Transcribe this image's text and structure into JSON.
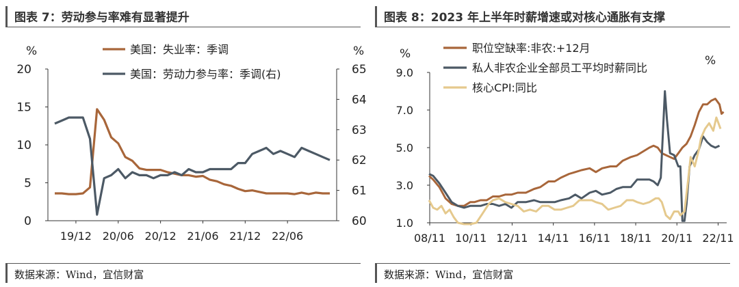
{
  "left": {
    "title": "图表 7：劳动参与率难有显著提升",
    "source": "数据来源：Wind，宜信财富",
    "chart_data": {
      "type": "line",
      "left_unit": "%",
      "right_unit": "%",
      "ylim_left": [
        0,
        20
      ],
      "ylim_right": [
        60,
        65
      ],
      "yticks_left": [
        "0",
        "5",
        "10",
        "15",
        "20"
      ],
      "yticks_right": [
        "60",
        "61",
        "62",
        "63",
        "64",
        "65"
      ],
      "xticks": [
        "19/12",
        "20/06",
        "20/12",
        "21/06",
        "21/12",
        "22/06"
      ],
      "grid": false,
      "legend_position": "top-center",
      "x_months": [
        "2019-09",
        "2019-10",
        "2019-11",
        "2019-12",
        "2020-01",
        "2020-02",
        "2020-03",
        "2020-04",
        "2020-05",
        "2020-06",
        "2020-07",
        "2020-08",
        "2020-09",
        "2020-10",
        "2020-11",
        "2020-12",
        "2021-01",
        "2021-02",
        "2021-03",
        "2021-04",
        "2021-05",
        "2021-06",
        "2021-07",
        "2021-08",
        "2021-09",
        "2021-10",
        "2021-11",
        "2021-12",
        "2022-01",
        "2022-02",
        "2022-03",
        "2022-04",
        "2022-05",
        "2022-06",
        "2022-07",
        "2022-08",
        "2022-09",
        "2022-10",
        "2022-11",
        "2022-12"
      ],
      "series": [
        {
          "name": "美国：失业率：季调",
          "axis": "left",
          "color": "#a8663a",
          "values": [
            3.6,
            3.6,
            3.5,
            3.5,
            3.6,
            4.4,
            14.7,
            13.3,
            11.0,
            10.2,
            8.4,
            7.9,
            6.9,
            6.7,
            6.7,
            6.7,
            6.4,
            6.2,
            6.0,
            6.0,
            5.8,
            5.9,
            5.4,
            5.2,
            4.8,
            4.6,
            4.2,
            3.9,
            4.0,
            3.8,
            3.6,
            3.6,
            3.6,
            3.6,
            3.5,
            3.7,
            3.5,
            3.7,
            3.6,
            3.6
          ]
        },
        {
          "name": "美国：劳动力参与率：季调(右)",
          "axis": "right",
          "color": "#4c5965",
          "values": [
            63.2,
            63.3,
            63.4,
            63.4,
            63.4,
            62.7,
            60.2,
            61.4,
            61.5,
            61.7,
            61.4,
            61.6,
            61.5,
            61.5,
            61.4,
            61.5,
            61.5,
            61.6,
            61.5,
            61.7,
            61.6,
            61.6,
            61.7,
            61.7,
            61.7,
            61.7,
            61.9,
            61.9,
            62.2,
            62.3,
            62.4,
            62.2,
            62.3,
            62.2,
            62.1,
            62.4,
            62.3,
            62.2,
            62.1,
            62.0
          ]
        }
      ]
    }
  },
  "right": {
    "title": "图表 8：2023 年上半年时薪增速或对核心通胀有支撑",
    "source": "数据来源：Wind，宜信财富",
    "chart_data": {
      "type": "line",
      "left_unit": "%",
      "right_unit": "%",
      "ylim": [
        1.0,
        9.0
      ],
      "yticks": [
        "1.0",
        "3.0",
        "5.0",
        "7.0",
        "9.0"
      ],
      "xticks": [
        "08/11",
        "10/11",
        "12/11",
        "14/11",
        "16/11",
        "18/11",
        "20/11",
        "22/11"
      ],
      "grid": false,
      "legend_position": "top-center",
      "series": [
        {
          "name": "职位空缺率:非农:+12月",
          "color": "#a8663a",
          "points": [
            [
              2008.8,
              3.5
            ],
            [
              2009.0,
              3.3
            ],
            [
              2009.3,
              2.9
            ],
            [
              2009.6,
              2.3
            ],
            [
              2009.9,
              2.0
            ],
            [
              2010.2,
              1.9
            ],
            [
              2010.5,
              1.9
            ],
            [
              2010.8,
              2.1
            ],
            [
              2011.0,
              2.1
            ],
            [
              2011.3,
              2.2
            ],
            [
              2011.6,
              2.2
            ],
            [
              2011.9,
              2.4
            ],
            [
              2012.2,
              2.4
            ],
            [
              2012.5,
              2.5
            ],
            [
              2012.8,
              2.5
            ],
            [
              2013.1,
              2.6
            ],
            [
              2013.5,
              2.6
            ],
            [
              2013.9,
              2.8
            ],
            [
              2014.2,
              2.9
            ],
            [
              2014.6,
              3.2
            ],
            [
              2014.9,
              3.2
            ],
            [
              2015.2,
              3.4
            ],
            [
              2015.6,
              3.6
            ],
            [
              2015.9,
              3.7
            ],
            [
              2016.2,
              3.8
            ],
            [
              2016.6,
              3.9
            ],
            [
              2016.9,
              3.7
            ],
            [
              2017.2,
              3.9
            ],
            [
              2017.6,
              4.0
            ],
            [
              2017.9,
              4.0
            ],
            [
              2018.2,
              4.3
            ],
            [
              2018.6,
              4.5
            ],
            [
              2018.9,
              4.6
            ],
            [
              2019.2,
              4.8
            ],
            [
              2019.5,
              5.0
            ],
            [
              2019.7,
              5.1
            ],
            [
              2019.9,
              5.0
            ],
            [
              2020.1,
              4.7
            ],
            [
              2020.3,
              4.6
            ],
            [
              2020.5,
              4.5
            ],
            [
              2020.7,
              4.4
            ],
            [
              2020.9,
              4.7
            ],
            [
              2021.1,
              5.0
            ],
            [
              2021.3,
              5.2
            ],
            [
              2021.5,
              5.6
            ],
            [
              2021.7,
              6.2
            ],
            [
              2021.9,
              6.9
            ],
            [
              2022.1,
              7.3
            ],
            [
              2022.3,
              7.3
            ],
            [
              2022.5,
              7.5
            ],
            [
              2022.7,
              7.6
            ],
            [
              2022.9,
              7.3
            ],
            [
              2023.0,
              6.8
            ],
            [
              2023.1,
              6.9
            ]
          ]
        },
        {
          "name": "私人非农企业全部员工平均时薪同比",
          "color": "#4c5965",
          "points": [
            [
              2008.8,
              3.6
            ],
            [
              2009.0,
              3.5
            ],
            [
              2009.3,
              3.1
            ],
            [
              2009.6,
              2.6
            ],
            [
              2009.9,
              2.1
            ],
            [
              2010.2,
              1.9
            ],
            [
              2010.5,
              1.8
            ],
            [
              2010.8,
              1.9
            ],
            [
              2011.0,
              1.9
            ],
            [
              2011.3,
              1.9
            ],
            [
              2011.6,
              2.0
            ],
            [
              2011.9,
              2.0
            ],
            [
              2012.2,
              1.9
            ],
            [
              2012.5,
              2.0
            ],
            [
              2012.8,
              1.8
            ],
            [
              2013.1,
              2.1
            ],
            [
              2013.5,
              2.1
            ],
            [
              2013.9,
              2.2
            ],
            [
              2014.2,
              2.1
            ],
            [
              2014.6,
              2.1
            ],
            [
              2014.9,
              2.1
            ],
            [
              2015.2,
              2.2
            ],
            [
              2015.6,
              2.3
            ],
            [
              2015.9,
              2.5
            ],
            [
              2016.2,
              2.3
            ],
            [
              2016.6,
              2.6
            ],
            [
              2016.9,
              2.7
            ],
            [
              2017.2,
              2.5
            ],
            [
              2017.6,
              2.6
            ],
            [
              2017.9,
              2.8
            ],
            [
              2018.2,
              2.9
            ],
            [
              2018.6,
              2.9
            ],
            [
              2018.9,
              3.3
            ],
            [
              2019.2,
              3.3
            ],
            [
              2019.5,
              3.3
            ],
            [
              2019.7,
              3.2
            ],
            [
              2019.9,
              3.0
            ],
            [
              2020.05,
              3.4
            ],
            [
              2020.25,
              8.0
            ],
            [
              2020.35,
              6.5
            ],
            [
              2020.5,
              4.7
            ],
            [
              2020.7,
              4.6
            ],
            [
              2020.9,
              4.0
            ],
            [
              2021.0,
              4.0
            ],
            [
              2021.1,
              1.1
            ],
            [
              2021.2,
              1.1
            ],
            [
              2021.3,
              2.0
            ],
            [
              2021.45,
              4.0
            ],
            [
              2021.7,
              4.6
            ],
            [
              2021.9,
              4.9
            ],
            [
              2022.1,
              5.6
            ],
            [
              2022.3,
              5.3
            ],
            [
              2022.5,
              5.1
            ],
            [
              2022.7,
              5.0
            ],
            [
              2022.9,
              5.1
            ]
          ]
        },
        {
          "name": "核心CPI:同比",
          "color": "#e5c98d",
          "points": [
            [
              2008.8,
              2.2
            ],
            [
              2009.0,
              1.8
            ],
            [
              2009.2,
              1.7
            ],
            [
              2009.4,
              1.9
            ],
            [
              2009.6,
              1.5
            ],
            [
              2009.8,
              1.7
            ],
            [
              2010.0,
              1.3
            ],
            [
              2010.2,
              1.0
            ],
            [
              2010.5,
              0.9
            ],
            [
              2010.8,
              0.6
            ],
            [
              2011.1,
              1.0
            ],
            [
              2011.4,
              1.5
            ],
            [
              2011.7,
              2.0
            ],
            [
              2011.9,
              2.2
            ],
            [
              2012.2,
              2.3
            ],
            [
              2012.5,
              2.1
            ],
            [
              2012.8,
              2.0
            ],
            [
              2013.1,
              1.9
            ],
            [
              2013.4,
              1.6
            ],
            [
              2013.7,
              1.7
            ],
            [
              2014.0,
              1.6
            ],
            [
              2014.3,
              1.9
            ],
            [
              2014.6,
              1.9
            ],
            [
              2014.9,
              1.7
            ],
            [
              2015.2,
              1.7
            ],
            [
              2015.5,
              1.8
            ],
            [
              2015.8,
              1.9
            ],
            [
              2016.1,
              2.2
            ],
            [
              2016.4,
              2.2
            ],
            [
              2016.7,
              2.2
            ],
            [
              2016.9,
              2.1
            ],
            [
              2017.2,
              2.0
            ],
            [
              2017.5,
              1.7
            ],
            [
              2017.8,
              1.8
            ],
            [
              2018.1,
              1.9
            ],
            [
              2018.4,
              2.2
            ],
            [
              2018.7,
              2.2
            ],
            [
              2018.9,
              2.1
            ],
            [
              2019.2,
              2.0
            ],
            [
              2019.5,
              2.1
            ],
            [
              2019.8,
              2.3
            ],
            [
              2019.95,
              2.3
            ],
            [
              2020.1,
              2.1
            ],
            [
              2020.3,
              1.4
            ],
            [
              2020.5,
              1.2
            ],
            [
              2020.7,
              1.6
            ],
            [
              2020.9,
              1.6
            ],
            [
              2021.0,
              1.4
            ],
            [
              2021.2,
              1.6
            ],
            [
              2021.35,
              3.0
            ],
            [
              2021.5,
              4.5
            ],
            [
              2021.7,
              4.0
            ],
            [
              2021.9,
              4.9
            ],
            [
              2022.0,
              5.5
            ],
            [
              2022.2,
              6.0
            ],
            [
              2022.4,
              6.3
            ],
            [
              2022.6,
              5.9
            ],
            [
              2022.75,
              6.6
            ],
            [
              2022.85,
              6.3
            ],
            [
              2022.95,
              6.0
            ]
          ]
        }
      ]
    }
  }
}
